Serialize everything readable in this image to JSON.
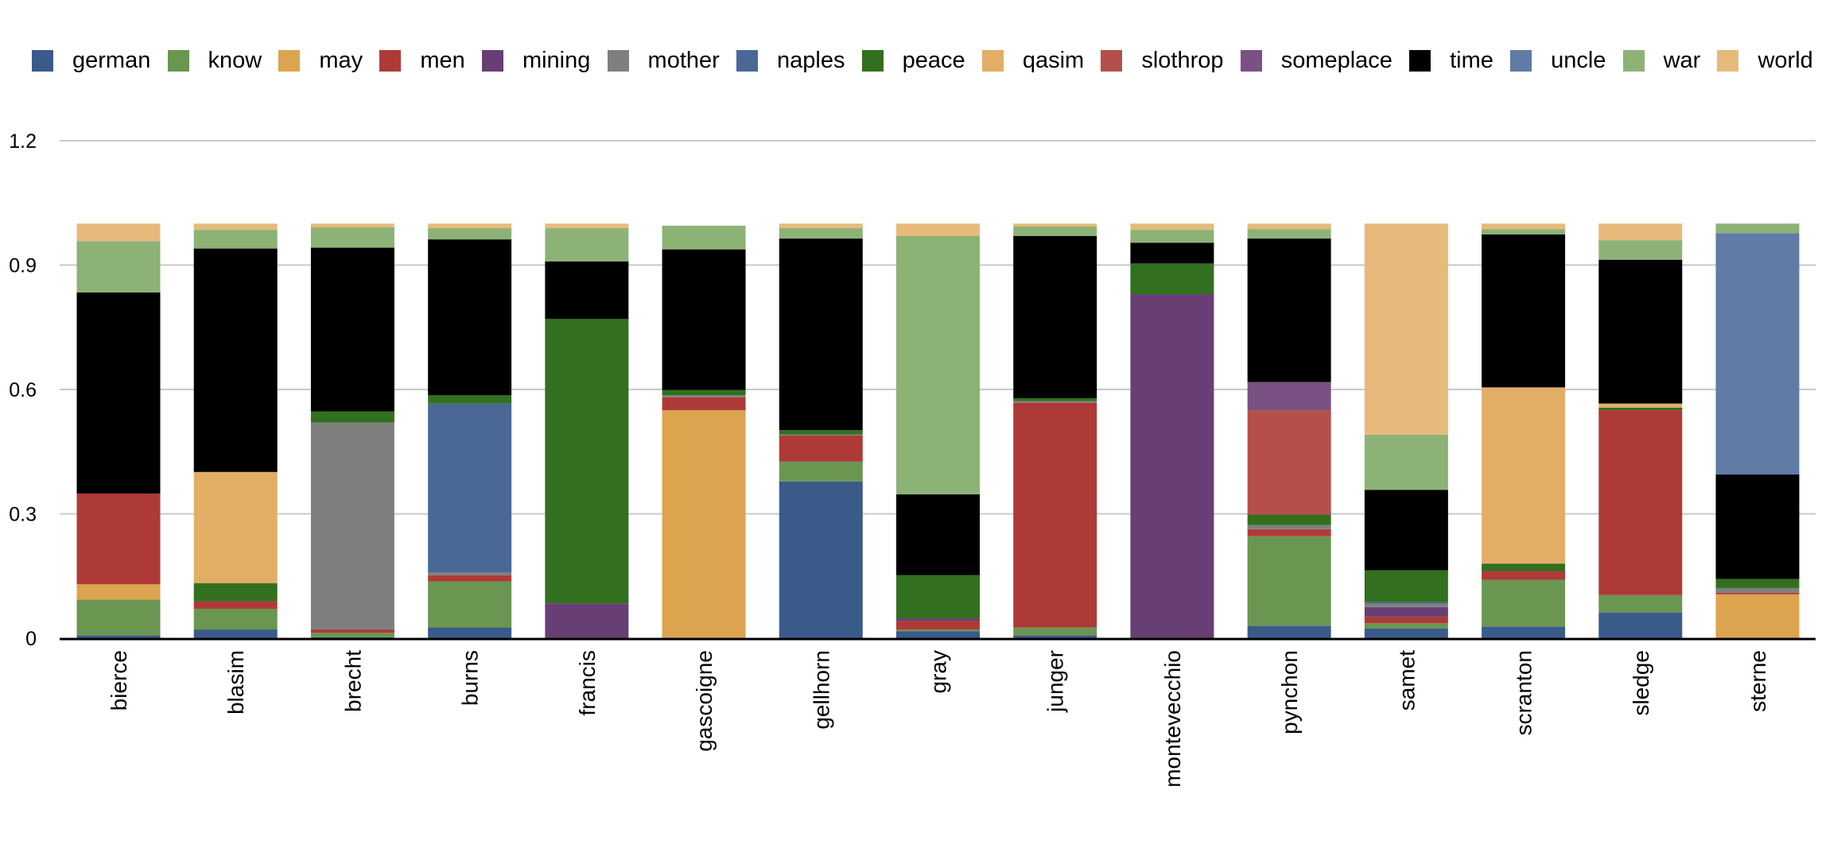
{
  "chart_data": {
    "type": "bar",
    "stacked": true,
    "title": "",
    "xlabel": "",
    "ylabel": "",
    "ylim": [
      0,
      1.2
    ],
    "yticks": [
      "0",
      "0.3",
      "0.6",
      "0.9",
      "1.2"
    ],
    "ytick_values": [
      0,
      0.3,
      0.6,
      0.9,
      1.2
    ],
    "grid": true,
    "legend_placement": "top",
    "categories": [
      "bierce",
      "blasim",
      "brecht",
      "burns",
      "francis",
      "gascoigne",
      "gellhorn",
      "gray",
      "junger",
      "montevecchio",
      "pynchon",
      "samet",
      "scranton",
      "sledge",
      "sterne"
    ],
    "series": [
      {
        "name": "german",
        "color": "#3a5a8a",
        "values": [
          0.007,
          0.021,
          0.002,
          0.026,
          0,
          0,
          0.378,
          0.017,
          0.007,
          0,
          0.03,
          0.023,
          0.028,
          0.062,
          0
        ]
      },
      {
        "name": "know",
        "color": "#6a9652",
        "values": [
          0.086,
          0.05,
          0.011,
          0.111,
          0,
          0,
          0.048,
          0.004,
          0.019,
          0,
          0.216,
          0.013,
          0.113,
          0.042,
          0
        ]
      },
      {
        "name": "may",
        "color": "#dca44f",
        "values": [
          0.037,
          0,
          0,
          0,
          0,
          0.55,
          0,
          0,
          0,
          0,
          0,
          0,
          0,
          0,
          0.106
        ]
      },
      {
        "name": "men",
        "color": "#ae3a38",
        "values": [
          0.219,
          0.018,
          0.008,
          0.015,
          0,
          0.031,
          0.063,
          0.021,
          0.542,
          0,
          0.017,
          0.016,
          0.021,
          0.446,
          0.004
        ]
      },
      {
        "name": "mining",
        "color": "#683f74",
        "values": [
          0,
          0,
          0,
          0,
          0.084,
          0,
          0,
          0.006,
          0,
          0.83,
          0,
          0.023,
          0,
          0,
          0
        ]
      },
      {
        "name": "mother",
        "color": "#7f807e",
        "values": [
          0,
          0,
          0.499,
          0.007,
          0,
          0.005,
          0.002,
          0,
          0.004,
          0,
          0.01,
          0.008,
          0,
          0,
          0.011
        ]
      },
      {
        "name": "naples",
        "color": "#4a6896",
        "values": [
          0,
          0,
          0,
          0.407,
          0,
          0,
          0,
          0,
          0,
          0,
          0,
          0.004,
          0,
          0,
          0
        ]
      },
      {
        "name": "peace",
        "color": "#326f1f",
        "values": [
          0,
          0.044,
          0.027,
          0.02,
          0.686,
          0.013,
          0.011,
          0.104,
          0.007,
          0.074,
          0.025,
          0.077,
          0.018,
          0.006,
          0.022
        ]
      },
      {
        "name": "qasim",
        "color": "#e2ae66",
        "values": [
          0,
          0.268,
          0,
          0,
          0,
          0,
          0,
          0,
          0,
          0,
          0,
          0,
          0.425,
          0.01,
          0
        ]
      },
      {
        "name": "slothrop",
        "color": "#b54f4c",
        "values": [
          0,
          0,
          0,
          0,
          0,
          0,
          0,
          0,
          0,
          0,
          0.252,
          0,
          0,
          0,
          0
        ]
      },
      {
        "name": "someplace",
        "color": "#7a5184",
        "values": [
          0,
          0,
          0,
          0,
          0,
          0,
          0,
          0,
          0,
          0,
          0.068,
          0,
          0,
          0,
          0
        ]
      },
      {
        "name": "time",
        "color": "#000000",
        "values": [
          0.485,
          0.539,
          0.395,
          0.376,
          0.139,
          0.339,
          0.462,
          0.195,
          0.391,
          0.05,
          0.346,
          0.194,
          0.369,
          0.347,
          0.252
        ]
      },
      {
        "name": "uncle",
        "color": "#5f7ba6",
        "values": [
          0,
          0,
          0,
          0,
          0,
          0,
          0,
          0,
          0,
          0,
          0,
          0,
          0,
          0,
          0.582
        ]
      },
      {
        "name": "war",
        "color": "#8db276",
        "values": [
          0.124,
          0.045,
          0.049,
          0.027,
          0.08,
          0.057,
          0.025,
          0.623,
          0.023,
          0.031,
          0.023,
          0.133,
          0.013,
          0.047,
          0.023
        ]
      },
      {
        "name": "world",
        "color": "#e6ba7b",
        "values": [
          0.042,
          0.015,
          0.009,
          0.011,
          0.011,
          0,
          0.011,
          0.03,
          0.007,
          0.015,
          0.013,
          0.509,
          0.013,
          0.04,
          0
        ]
      }
    ]
  }
}
